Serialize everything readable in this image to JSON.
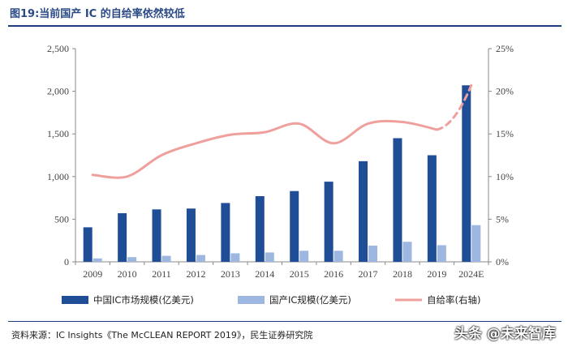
{
  "title": "图19:当前国产 IC 的自给率依然较低",
  "source": "资料来源：IC Insights《The McCLEAN REPORT 2019》，民生证券研究院",
  "watermark": "头条 @未来智库",
  "colors": {
    "market_bar": "#1f4e96",
    "domestic_bar": "#9db7e0",
    "self_sufficiency_line": "#f0a09c",
    "title": "#2a4a86"
  },
  "chart_data": {
    "type": "bar",
    "title": "当前国产 IC 的自给率依然较低",
    "categories": [
      "2009",
      "2010",
      "2011",
      "2012",
      "2013",
      "2014",
      "2015",
      "2016",
      "2017",
      "2018",
      "2019",
      "2024E"
    ],
    "series": [
      {
        "name": "中国IC市场规模(亿美元)",
        "type": "bar",
        "axis": "left",
        "values": [
          405,
          570,
          615,
          625,
          690,
          770,
          830,
          940,
          1180,
          1450,
          1250,
          2070
        ]
      },
      {
        "name": "国产IC规模(亿美元)",
        "type": "bar",
        "axis": "left",
        "values": [
          40,
          55,
          70,
          80,
          100,
          110,
          130,
          130,
          190,
          235,
          195,
          430
        ]
      },
      {
        "name": "自给率(右轴)",
        "type": "line",
        "axis": "right",
        "values": [
          10.2,
          10.0,
          12.5,
          13.9,
          14.9,
          15.2,
          16.2,
          13.9,
          16.2,
          16.4,
          15.5,
          20.7
        ],
        "dashed_segment": [
          "2019",
          "2024E"
        ]
      }
    ],
    "y_left": {
      "lim": [
        0,
        2500
      ],
      "ticks": [
        "0",
        "500",
        "1,000",
        "1,500",
        "2,000",
        "2,500"
      ]
    },
    "y_right": {
      "lim": [
        0,
        25
      ],
      "ticks": [
        "0%",
        "5%",
        "10%",
        "15%",
        "20%",
        "25%"
      ]
    },
    "legend": [
      "中国IC市场规模(亿美元)",
      "国产IC规模(亿美元)",
      "自给率(右轴)"
    ],
    "legend_position": "bottom"
  }
}
